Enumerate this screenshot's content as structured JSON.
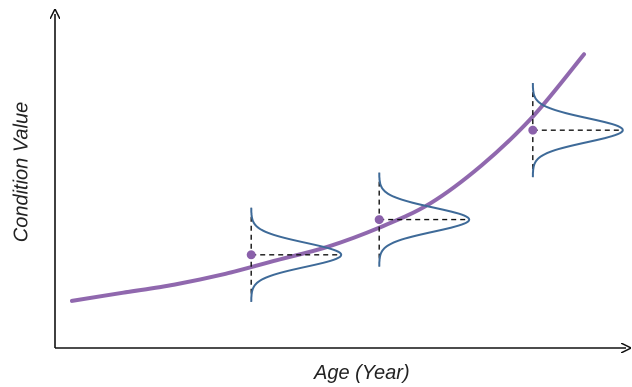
{
  "axes": {
    "x_label": "Age (Year)",
    "y_label": "Condition Value"
  },
  "colors": {
    "axis": "#111111",
    "curve": "#8a60aa",
    "distribution": "#3e6a98",
    "dashed": "#111111",
    "point": "#8a60aa"
  },
  "chart_data": {
    "type": "line",
    "title": "",
    "xlabel": "Age (Year)",
    "ylabel": "Condition Value",
    "grid": false,
    "legend": "none",
    "curve": "exponential growth of condition value with age",
    "x": [
      0,
      0.1,
      0.2,
      0.3,
      0.4,
      0.5,
      0.6,
      0.7,
      0.8,
      0.9,
      1.0
    ],
    "y": [
      0.03,
      0.06,
      0.09,
      0.13,
      0.18,
      0.23,
      0.3,
      0.39,
      0.53,
      0.71,
      0.94
    ],
    "distributions": [
      {
        "x": 0.35,
        "y": 0.2
      },
      {
        "x": 0.6,
        "y": 0.33
      },
      {
        "x": 0.9,
        "y": 0.66
      }
    ]
  }
}
